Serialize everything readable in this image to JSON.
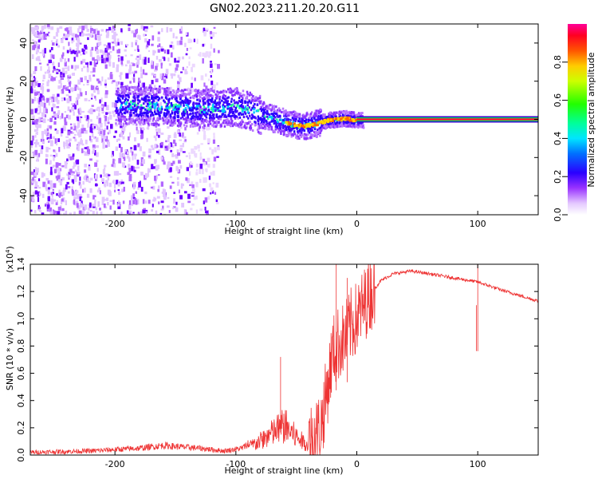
{
  "title": "GN02.2023.211.20.20.G11",
  "chart_data": [
    {
      "type": "heatmap",
      "name": "spectrogram",
      "xlabel": "Height of straight line (km)",
      "ylabel": "Frequency (Hz)",
      "xlim": [
        -270,
        150
      ],
      "ylim": [
        -50,
        50
      ],
      "xticks": [
        -200,
        -100,
        0,
        100
      ],
      "xtick_labels": [
        "-200",
        "-100",
        "0",
        "100"
      ],
      "yticks": [
        -40,
        -20,
        0,
        20,
        40
      ],
      "ytick_labels": [
        "-40",
        "-20",
        "0",
        "20",
        "40"
      ],
      "ridge": [
        {
          "x": -190,
          "f": 8
        },
        {
          "x": -160,
          "f": 7
        },
        {
          "x": -130,
          "f": 6
        },
        {
          "x": -100,
          "f": 7
        },
        {
          "x": -85,
          "f": 4
        },
        {
          "x": -70,
          "f": 1
        },
        {
          "x": -55,
          "f": -2
        },
        {
          "x": -45,
          "f": -3
        },
        {
          "x": -35,
          "f": -2
        },
        {
          "x": -25,
          "f": 0
        },
        {
          "x": -10,
          "f": 1
        },
        {
          "x": 0,
          "f": 0
        },
        {
          "x": 150,
          "f": 0
        }
      ],
      "colorbar": {
        "label": "Normalized spectral amplitude",
        "ticks": [
          0.0,
          0.2,
          0.4,
          0.6,
          0.8
        ],
        "tick_labels": [
          "0.0",
          "0.2",
          "0.4",
          "0.6",
          "0.8"
        ],
        "range": [
          0,
          1
        ]
      }
    },
    {
      "type": "line",
      "name": "snr",
      "xlabel": "Height of straight line (km)",
      "ylabel": "SNR (10 * v/v)",
      "multiplier_label": "(x10",
      "multiplier_exp": "4",
      "multiplier_close": ")",
      "xlim": [
        -270,
        150
      ],
      "ylim": [
        0,
        1.4
      ],
      "xticks": [
        -200,
        -100,
        0,
        100
      ],
      "xtick_labels": [
        "-200",
        "-100",
        "0",
        "100"
      ],
      "yticks": [
        0.0,
        0.2,
        0.4,
        0.6,
        0.8,
        1.0,
        1.2,
        1.4
      ],
      "ytick_labels": [
        "0.0",
        "0.2",
        "0.4",
        "0.6",
        "0.8",
        "1.0",
        "1.2",
        "1.4"
      ],
      "color": "#ee3333",
      "envelope": [
        {
          "x": -270,
          "y": 0.02
        },
        {
          "x": -220,
          "y": 0.03
        },
        {
          "x": -180,
          "y": 0.05
        },
        {
          "x": -160,
          "y": 0.07
        },
        {
          "x": -130,
          "y": 0.05
        },
        {
          "x": -110,
          "y": 0.03
        },
        {
          "x": -95,
          "y": 0.05
        },
        {
          "x": -80,
          "y": 0.14
        },
        {
          "x": -70,
          "y": 0.22
        },
        {
          "x": -60,
          "y": 0.3
        },
        {
          "x": -50,
          "y": 0.18
        },
        {
          "x": -40,
          "y": 0.1
        },
        {
          "x": -30,
          "y": 0.2
        },
        {
          "x": -25,
          "y": 0.45
        },
        {
          "x": -20,
          "y": 0.75
        },
        {
          "x": -15,
          "y": 0.82
        },
        {
          "x": -10,
          "y": 0.85
        },
        {
          "x": -5,
          "y": 0.95
        },
        {
          "x": 0,
          "y": 1.0
        },
        {
          "x": 10,
          "y": 1.17
        },
        {
          "x": 20,
          "y": 1.28
        },
        {
          "x": 30,
          "y": 1.33
        },
        {
          "x": 45,
          "y": 1.35
        },
        {
          "x": 60,
          "y": 1.33
        },
        {
          "x": 80,
          "y": 1.3
        },
        {
          "x": 100,
          "y": 1.27
        },
        {
          "x": 120,
          "y": 1.21
        },
        {
          "x": 150,
          "y": 1.13
        }
      ]
    }
  ]
}
